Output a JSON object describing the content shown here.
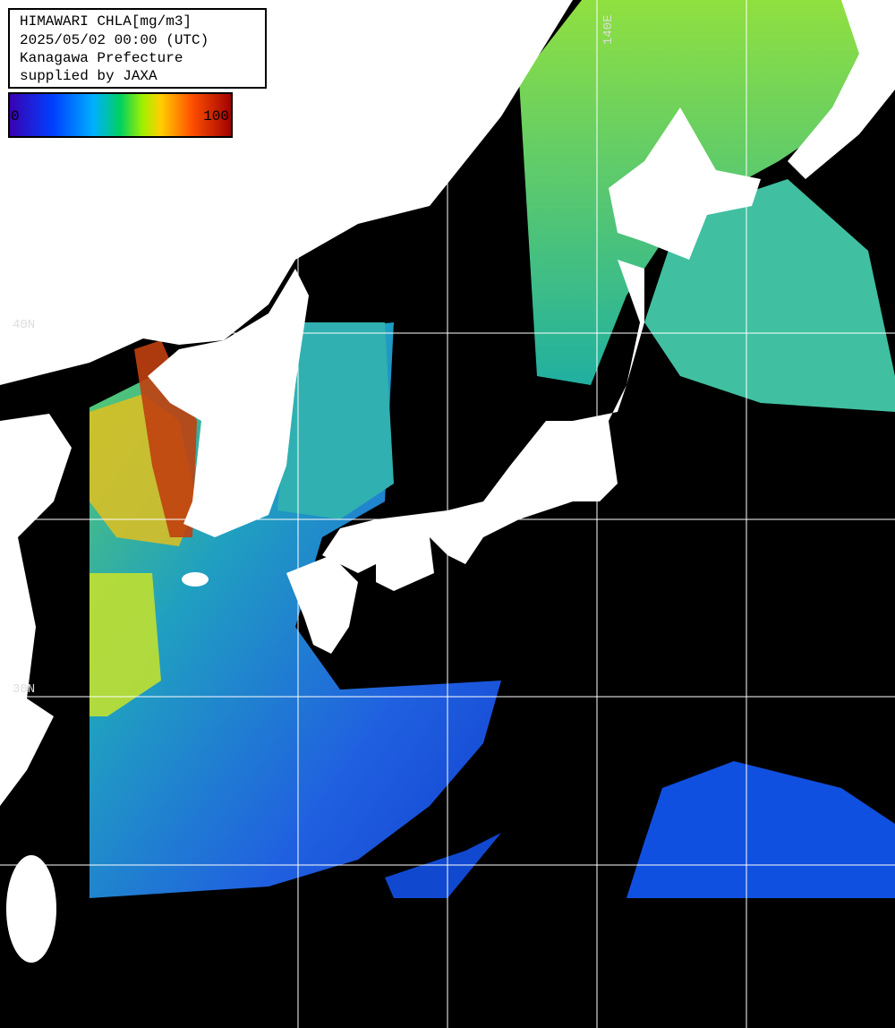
{
  "header": {
    "lines": [
      "HIMAWARI CHLA[mg/m3]",
      "2025/05/02 00:00 (UTC)",
      "Kanagawa Prefecture",
      "supplied by JAXA"
    ]
  },
  "colorbar": {
    "min": 0,
    "max": 100
  },
  "grid_labels": {
    "lat_40": "40N",
    "lat_30": "30N",
    "lon_140": "140E"
  }
}
